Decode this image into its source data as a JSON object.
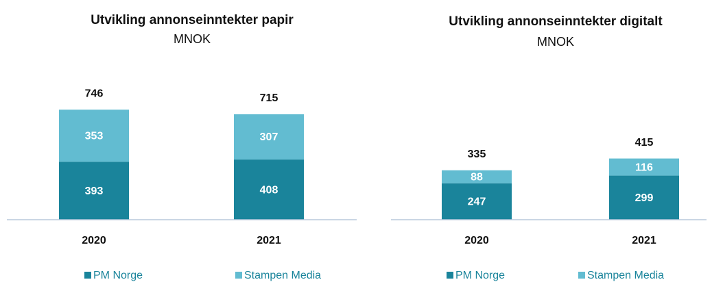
{
  "chart_data": [
    {
      "type": "bar",
      "stacked": true,
      "title": "Utvikling annonseinntekter papir",
      "subtitle": "MNOK",
      "categories": [
        "2020",
        "2021"
      ],
      "series": [
        {
          "name": "PM Norge",
          "color": "#1a849b",
          "values": [
            393,
            408
          ]
        },
        {
          "name": "Stampen Media",
          "color": "#62bcd1",
          "values": [
            353,
            307
          ]
        }
      ],
      "totals": [
        746,
        715
      ]
    },
    {
      "type": "bar",
      "stacked": true,
      "title": "Utvikling annonseinntekter digitalt",
      "subtitle": "MNOK",
      "categories": [
        "2020",
        "2021"
      ],
      "series": [
        {
          "name": "PM Norge",
          "color": "#1a849b",
          "values": [
            247,
            299
          ]
        },
        {
          "name": "Stampen Media",
          "color": "#62bcd1",
          "values": [
            88,
            116
          ]
        }
      ],
      "totals": [
        335,
        415
      ]
    }
  ]
}
